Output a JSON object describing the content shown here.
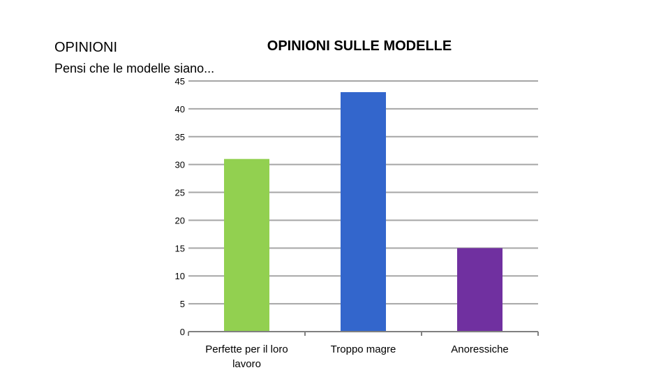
{
  "slide": {
    "title": "OPINIONI",
    "subtitle": "Pensi che le modelle siano..."
  },
  "chart_data": {
    "type": "bar",
    "title": "OPINIONI SULLE MODELLE",
    "xlabel": "",
    "ylabel": "",
    "categories": [
      [
        "Perfette per il loro",
        "lavoro"
      ],
      [
        "Troppo magre"
      ],
      [
        "Anoressiche"
      ]
    ],
    "values": [
      31,
      43,
      15
    ],
    "colors": [
      "#92d050",
      "#3366cc",
      "#7030a0"
    ],
    "ylim": [
      0,
      45
    ],
    "yticks": [
      0,
      5,
      10,
      15,
      20,
      25,
      30,
      35,
      40,
      45
    ],
    "grid": true,
    "legend": "none",
    "gridline_color": "#a6a6a6"
  }
}
